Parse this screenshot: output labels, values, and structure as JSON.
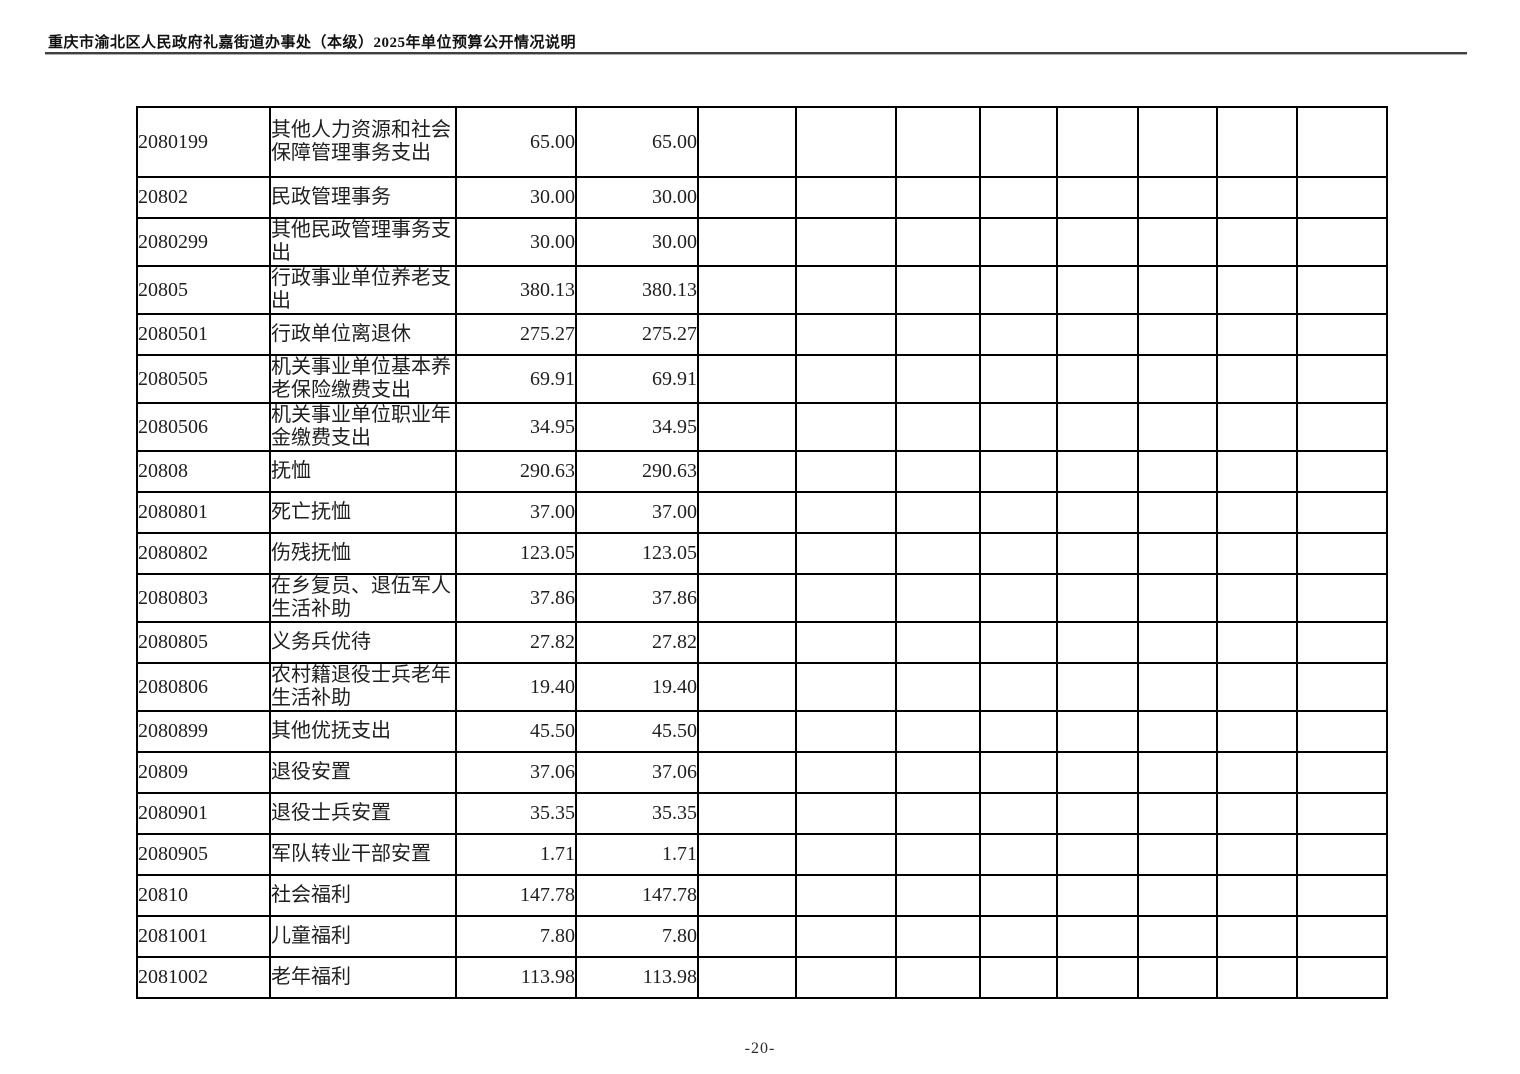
{
  "page": {
    "header_title": "重庆市渝北区人民政府礼嘉街道办事处（本级）2025年单位预算公开情况说明",
    "footer_page_number": "-20-"
  },
  "table": {
    "description": "budget expenditure continuation table: code, item name, two amount columns, eight empty columns",
    "rows": [
      {
        "code": "2080199",
        "name": "其他人力资源和社会保障管理事务支出",
        "amount1": "65.00",
        "amount2": "65.00"
      },
      {
        "code": "20802",
        "name": "民政管理事务",
        "amount1": "30.00",
        "amount2": "30.00"
      },
      {
        "code": "2080299",
        "name": "其他民政管理事务支出",
        "amount1": "30.00",
        "amount2": "30.00"
      },
      {
        "code": "20805",
        "name": "行政事业单位养老支出",
        "amount1": "380.13",
        "amount2": "380.13"
      },
      {
        "code": "2080501",
        "name": "行政单位离退休",
        "amount1": "275.27",
        "amount2": "275.27"
      },
      {
        "code": "2080505",
        "name": "机关事业单位基本养老保险缴费支出",
        "amount1": "69.91",
        "amount2": "69.91"
      },
      {
        "code": "2080506",
        "name": "机关事业单位职业年金缴费支出",
        "amount1": "34.95",
        "amount2": "34.95"
      },
      {
        "code": "20808",
        "name": "抚恤",
        "amount1": "290.63",
        "amount2": "290.63"
      },
      {
        "code": "2080801",
        "name": "死亡抚恤",
        "amount1": "37.00",
        "amount2": "37.00"
      },
      {
        "code": "2080802",
        "name": "伤残抚恤",
        "amount1": "123.05",
        "amount2": "123.05"
      },
      {
        "code": "2080803",
        "name": "在乡复员、退伍军人生活补助",
        "amount1": "37.86",
        "amount2": "37.86"
      },
      {
        "code": "2080805",
        "name": "义务兵优待",
        "amount1": "27.82",
        "amount2": "27.82"
      },
      {
        "code": "2080806",
        "name": "农村籍退役士兵老年生活补助",
        "amount1": "19.40",
        "amount2": "19.40"
      },
      {
        "code": "2080899",
        "name": "其他优抚支出",
        "amount1": "45.50",
        "amount2": "45.50"
      },
      {
        "code": "20809",
        "name": "退役安置",
        "amount1": "37.06",
        "amount2": "37.06"
      },
      {
        "code": "2080901",
        "name": "退役士兵安置",
        "amount1": "35.35",
        "amount2": "35.35"
      },
      {
        "code": "2080905",
        "name": "军队转业干部安置",
        "amount1": "1.71",
        "amount2": "1.71"
      },
      {
        "code": "20810",
        "name": "社会福利",
        "amount1": "147.78",
        "amount2": "147.78"
      },
      {
        "code": "2081001",
        "name": "儿童福利",
        "amount1": "7.80",
        "amount2": "7.80"
      },
      {
        "code": "2081002",
        "name": "老年福利",
        "amount1": "113.98",
        "amount2": "113.98"
      }
    ],
    "empty_trailing_columns": 8
  }
}
